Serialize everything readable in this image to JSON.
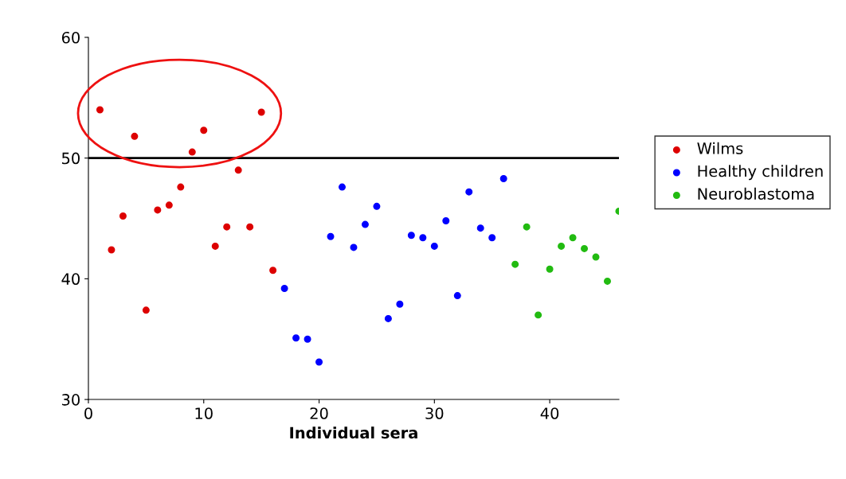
{
  "chart_data": {
    "type": "scatter",
    "xlabel": "Individual sera",
    "xlim": [
      0,
      46
    ],
    "xticks": [
      0,
      10,
      20,
      30,
      40
    ],
    "ylim": [
      30,
      60
    ],
    "yticks": [
      30,
      40,
      50,
      60
    ],
    "grid": false,
    "legend": "right",
    "marker": "circle",
    "ref_lines": [
      {
        "axis": "y",
        "value": 50,
        "color": "#000000",
        "line_style": "solid"
      }
    ],
    "series": [
      {
        "name": "Wilms",
        "color": "#dd0000",
        "x": [
          1,
          2,
          3,
          4,
          5,
          6,
          7,
          8,
          9,
          10,
          11,
          12,
          13,
          14,
          15,
          16
        ],
        "values": [
          54.0,
          42.4,
          45.2,
          51.8,
          37.4,
          45.7,
          46.1,
          47.6,
          50.5,
          52.3,
          42.7,
          44.3,
          49.0,
          44.3,
          53.8,
          40.7
        ]
      },
      {
        "name": "Healthy children",
        "color": "#0000ff",
        "x": [
          17,
          18,
          19,
          20,
          21,
          22,
          23,
          24,
          25,
          26,
          27,
          28,
          29,
          30,
          31,
          32,
          33,
          34,
          35,
          36
        ],
        "values": [
          39.2,
          35.1,
          35.0,
          33.1,
          43.5,
          47.6,
          42.6,
          44.5,
          46.0,
          36.7,
          37.9,
          43.6,
          43.4,
          42.7,
          44.8,
          38.6,
          47.2,
          44.2,
          43.4,
          48.3
        ]
      },
      {
        "name": "Neuroblastoma",
        "color": "#22bb11",
        "x": [
          37,
          38,
          39,
          40,
          41,
          42,
          43,
          44,
          45,
          46
        ],
        "values": [
          41.2,
          44.3,
          37.0,
          40.8,
          42.7,
          43.4,
          42.5,
          41.8,
          39.8,
          45.6
        ]
      }
    ]
  }
}
